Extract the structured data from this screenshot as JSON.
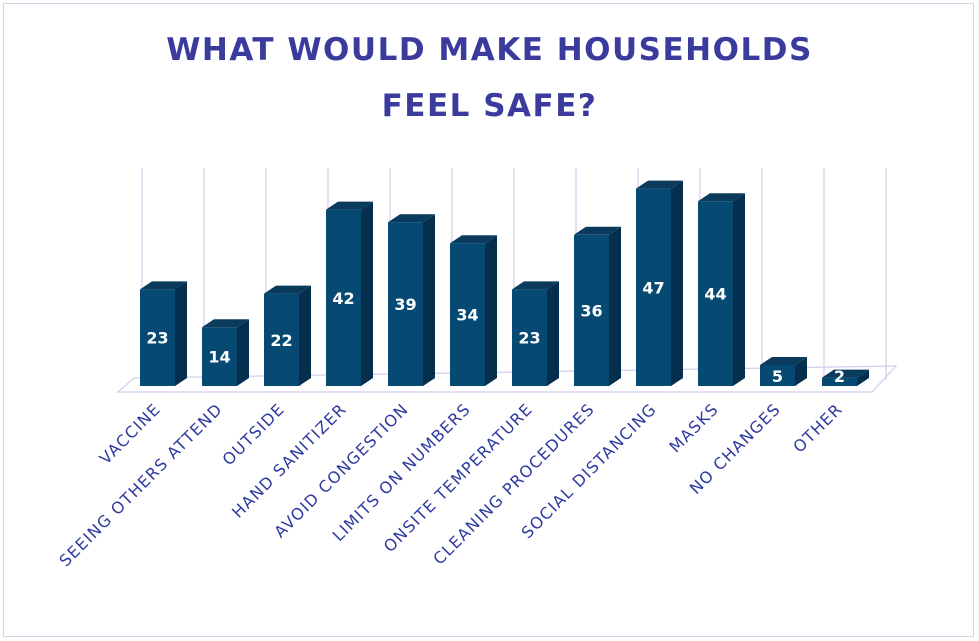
{
  "title_lines": [
    "WHAT WOULD MAKE HOUSEHOLDS",
    "FEEL SAFE?"
  ],
  "colors": {
    "bar_front": "#064a74",
    "bar_side": "#052f4c",
    "bar_top": "#0a3a5c",
    "grid": "#d2cdea",
    "title": "#3b3b9e",
    "labels": "#2d3aa0"
  },
  "chart_data": {
    "type": "bar",
    "title": "WHAT WOULD MAKE HOUSEHOLDS FEEL SAFE?",
    "categories": [
      "VACCINE",
      "SEEING OTHERS ATTEND",
      "OUTSIDE",
      "HAND SANITIZER",
      "AVOID CONGESTION",
      "LIMITS ON NUMBERS",
      "ONSITE TEMPERATURE",
      "CLEANING PROCEDURES",
      "SOCIAL DISTANCING",
      "MASKS",
      "NO CHANGES",
      "OTHER"
    ],
    "values": [
      23,
      14,
      22,
      42,
      39,
      34,
      23,
      36,
      47,
      44,
      5,
      2
    ],
    "ylim": [
      0,
      50
    ],
    "grid": true,
    "legend": "none",
    "data_labels": true,
    "style": "3d-column"
  }
}
